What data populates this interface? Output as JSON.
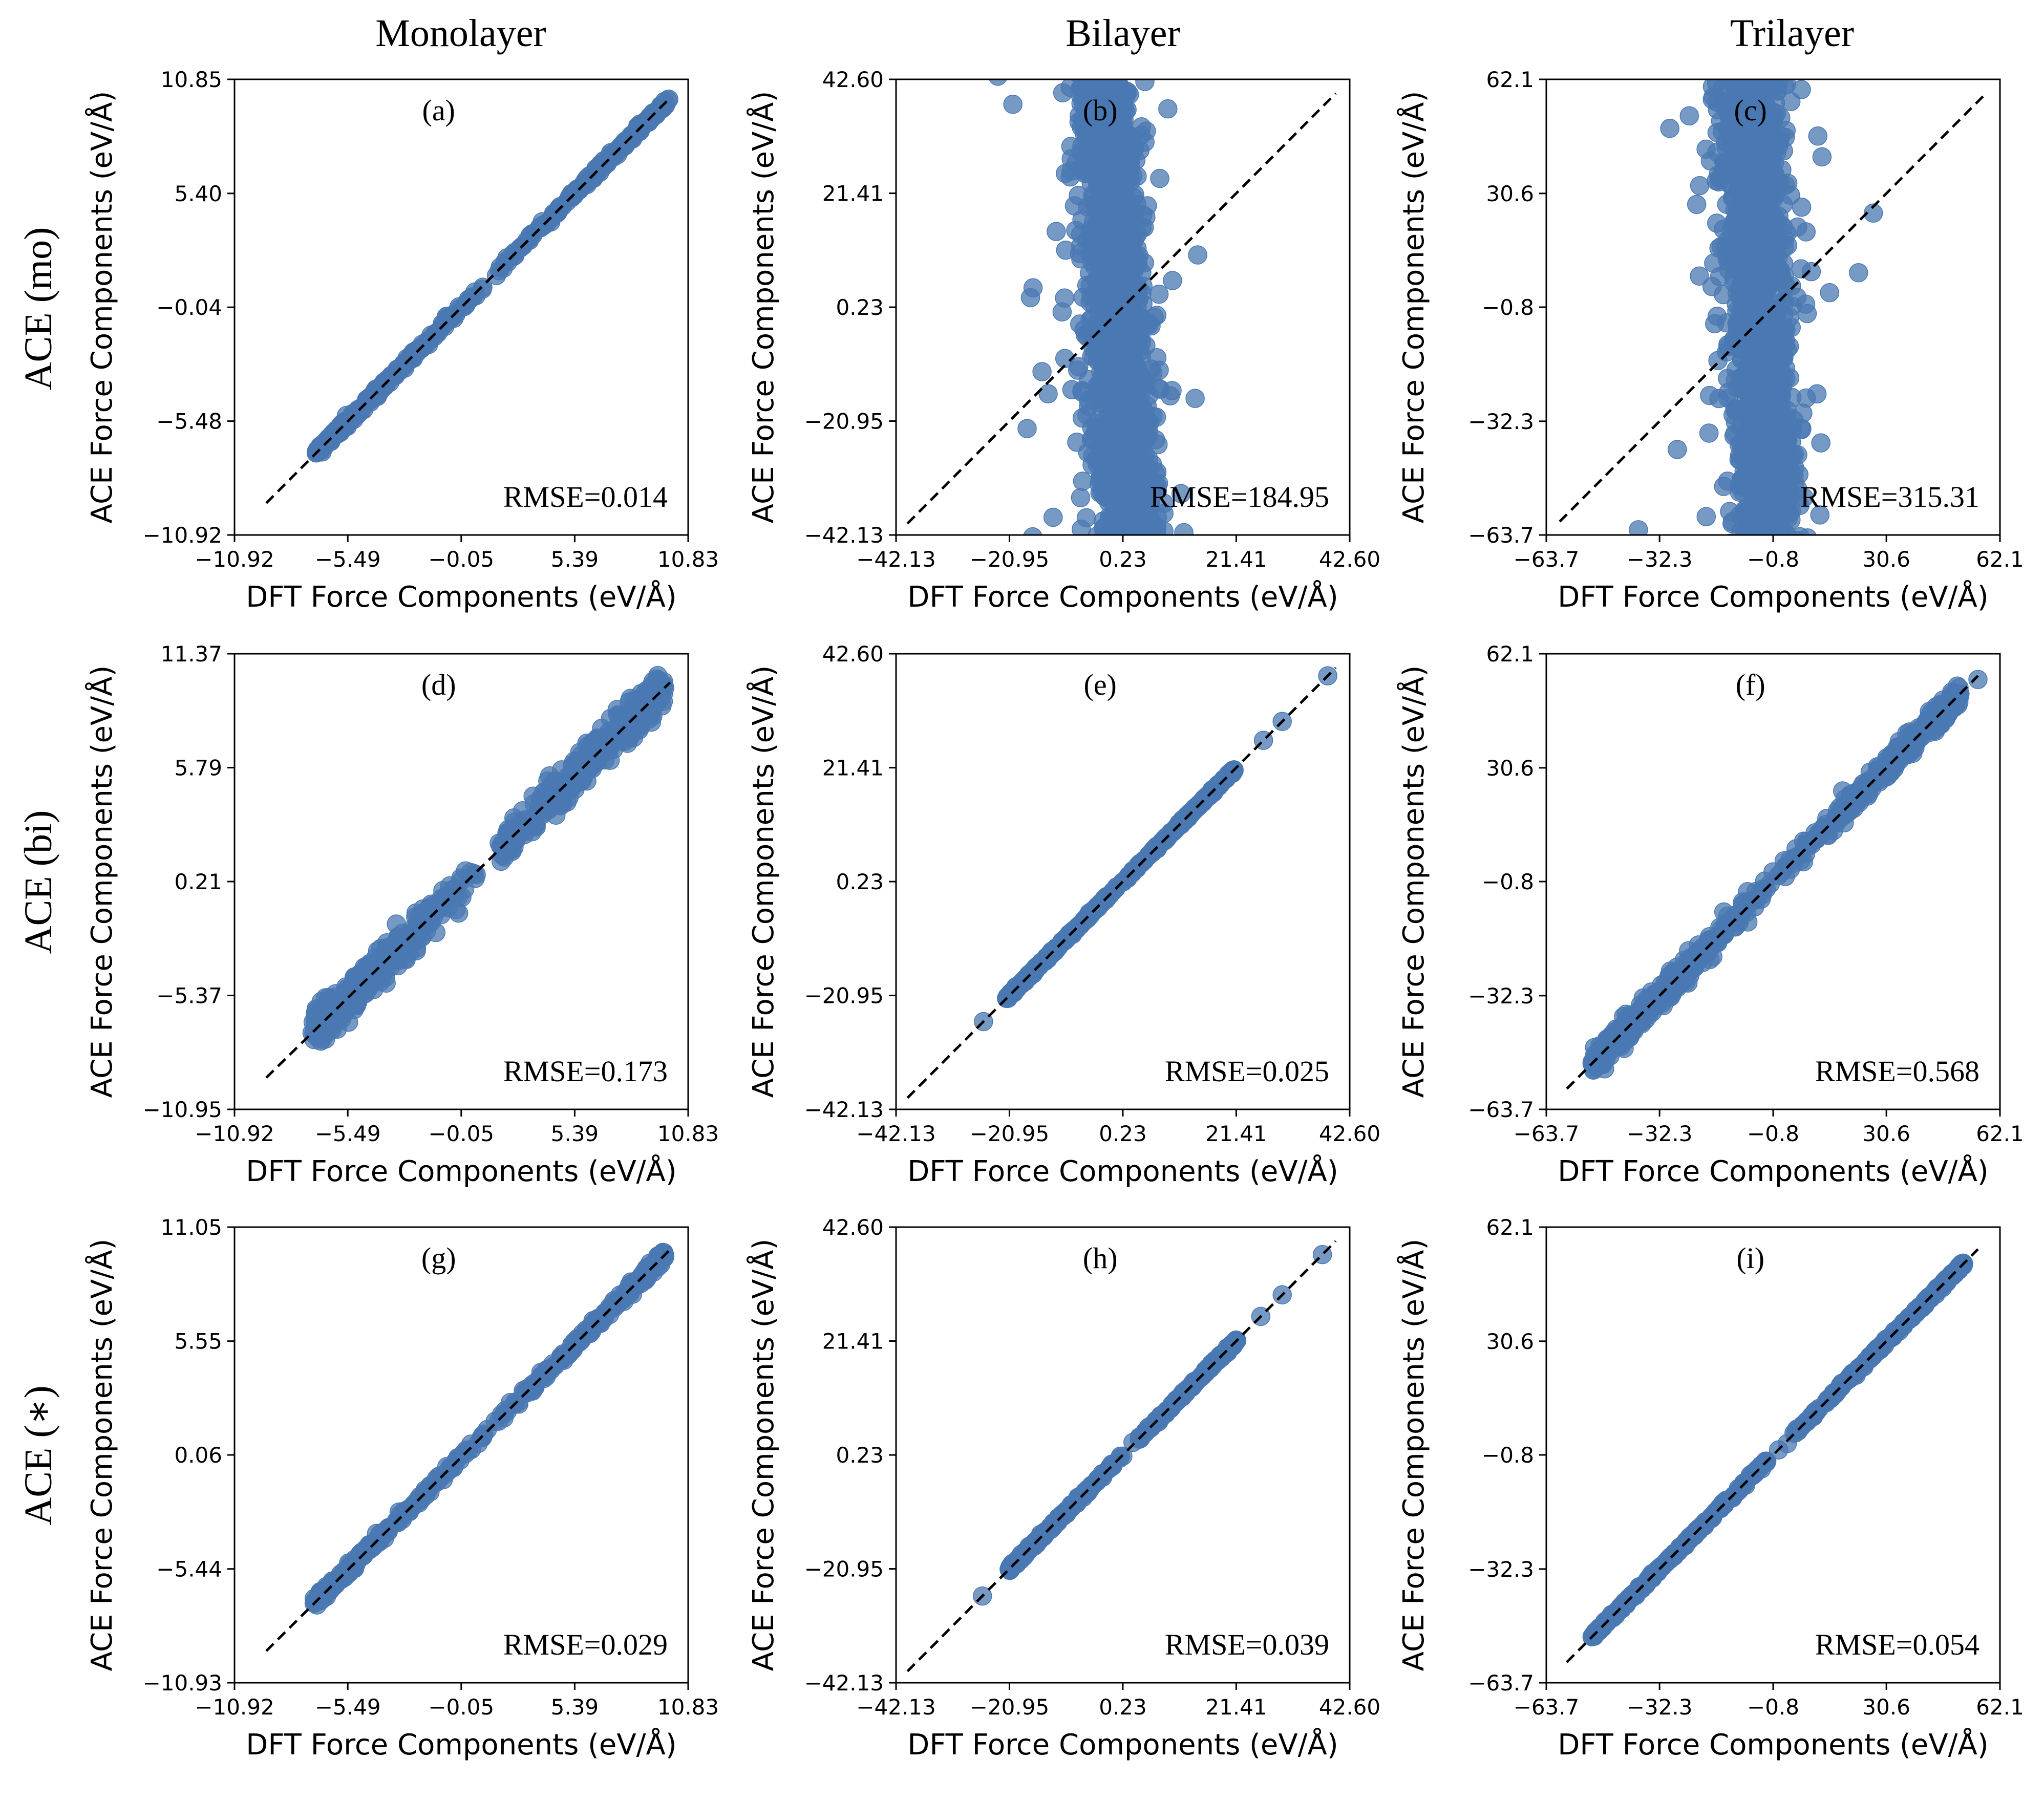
{
  "figure": {
    "column_titles": [
      "Monolayer",
      "Bilayer",
      "Trilayer"
    ],
    "row_titles": [
      "ACE (mo)",
      "ACE (bi)",
      "ACE (∗)"
    ],
    "colors": {
      "points": "#4a78b2",
      "diagonal": "#000000",
      "axes": "#000000"
    }
  },
  "chart_data": [
    {
      "type": "scatter",
      "label": "(a)",
      "row": 0,
      "col": 0,
      "xlabel": "DFT Force Components (eV/Å)",
      "ylabel": "ACE Force Components (eV/Å)",
      "xticks": [
        "−10.92",
        "−5.49",
        "−0.05",
        "5.39",
        "10.83"
      ],
      "yticks": [
        "−10.92",
        "−5.48",
        "−0.04",
        "5.40",
        "10.85"
      ],
      "xlim": [
        -10.92,
        10.83
      ],
      "ylim": [
        -10.92,
        10.85
      ],
      "rmse_text": "RMSE=0.014",
      "pattern": "tight",
      "slope": 1.0,
      "spread": 0.09,
      "x_range": [
        -7.0,
        9.9
      ],
      "n_points": 420
    },
    {
      "type": "scatter",
      "label": "(b)",
      "row": 0,
      "col": 1,
      "xlabel": "DFT Force Components (eV/Å)",
      "ylabel": "ACE Force Components (eV/Å)",
      "xticks": [
        "−42.13",
        "−20.95",
        "0.23",
        "21.41",
        "42.60"
      ],
      "yticks": [
        "−42.13",
        "−20.95",
        "0.23",
        "21.41",
        "42.60"
      ],
      "xlim": [
        -42.13,
        42.6
      ],
      "ylim": [
        -42.13,
        42.6
      ],
      "rmse_text": "RMSE=184.95",
      "pattern": "vertical",
      "slope": -0.06,
      "center": -1.0,
      "spread": 2.8,
      "y_range": [
        -44,
        44
      ],
      "n_points": 1400,
      "diag_range": [
        -40,
        40
      ]
    },
    {
      "type": "scatter",
      "label": "(c)",
      "row": 0,
      "col": 2,
      "xlabel": "DFT Force Components (eV/Å)",
      "ylabel": "ACE Force Components (eV/Å)",
      "xticks": [
        "−63.7",
        "−32.3",
        "−0.8",
        "30.6",
        "62.1"
      ],
      "yticks": [
        "−63.7",
        "−32.3",
        "−0.8",
        "30.6",
        "62.1"
      ],
      "xlim": [
        -63.7,
        62.1
      ],
      "ylim": [
        -63.7,
        62.1
      ],
      "rmse_text": "RMSE=315.31",
      "pattern": "vertical",
      "slope": -0.05,
      "center": -5.0,
      "spread": 4.0,
      "y_range": [
        -66,
        64
      ],
      "n_points": 1500,
      "diag_range": [
        -60,
        58
      ]
    },
    {
      "type": "scatter",
      "label": "(d)",
      "row": 1,
      "col": 0,
      "xlabel": "DFT Force Components (eV/Å)",
      "ylabel": "ACE Force Components (eV/Å)",
      "xticks": [
        "−10.92",
        "−5.49",
        "−0.05",
        "5.39",
        "10.83"
      ],
      "yticks": [
        "−10.95",
        "−5.37",
        "0.21",
        "5.79",
        "11.37"
      ],
      "xlim": [
        -10.92,
        10.83
      ],
      "ylim": [
        -10.95,
        11.37
      ],
      "rmse_text": "RMSE=0.173",
      "pattern": "tight",
      "slope": 1.0,
      "spread": 0.45,
      "x_range": [
        -7.2,
        9.7
      ],
      "n_points": 650
    },
    {
      "type": "scatter",
      "label": "(e)",
      "row": 1,
      "col": 1,
      "xlabel": "DFT Force Components (eV/Å)",
      "ylabel": "ACE Force Components (eV/Å)",
      "xticks": [
        "−42.13",
        "−20.95",
        "0.23",
        "21.41",
        "42.60"
      ],
      "yticks": [
        "−42.13",
        "−20.95",
        "0.23",
        "21.41",
        "42.60"
      ],
      "xlim": [
        -42.13,
        42.6
      ],
      "ylim": [
        -42.13,
        42.6
      ],
      "rmse_text": "RMSE=0.025",
      "pattern": "tight",
      "slope": 1.0,
      "spread": 0.15,
      "x_range": [
        -21.5,
        21.0
      ],
      "n_points": 420,
      "extra_points": [
        [
          -25.8,
          -25.8
        ],
        [
          26.5,
          26.5
        ],
        [
          30.0,
          30.0
        ],
        [
          38.5,
          38.5
        ]
      ],
      "diag_range": [
        -40,
        40
      ]
    },
    {
      "type": "scatter",
      "label": "(f)",
      "row": 1,
      "col": 2,
      "xlabel": "DFT Force Components (eV/Å)",
      "ylabel": "ACE Force Components (eV/Å)",
      "xticks": [
        "−63.7",
        "−32.3",
        "−0.8",
        "30.6",
        "62.1"
      ],
      "yticks": [
        "−63.7",
        "−32.3",
        "−0.8",
        "30.6",
        "62.1"
      ],
      "xlim": [
        -63.7,
        62.1
      ],
      "ylim": [
        -63.7,
        62.1
      ],
      "rmse_text": "RMSE=0.568",
      "pattern": "tight",
      "slope": 1.0,
      "spread": 1.6,
      "x_range": [
        -51,
        51
      ],
      "n_points": 700,
      "extra_points": [
        [
          56,
          55
        ]
      ],
      "diag_range": [
        -58,
        56
      ]
    },
    {
      "type": "scatter",
      "label": "(g)",
      "row": 2,
      "col": 0,
      "xlabel": "DFT Force Components (eV/Å)",
      "ylabel": "ACE Force Components (eV/Å)",
      "xticks": [
        "−10.92",
        "−5.49",
        "−0.05",
        "5.39",
        "10.83"
      ],
      "yticks": [
        "−10.93",
        "−5.44",
        "0.06",
        "5.55",
        "11.05"
      ],
      "xlim": [
        -10.92,
        10.83
      ],
      "ylim": [
        -10.93,
        11.05
      ],
      "rmse_text": "RMSE=0.029",
      "pattern": "tight",
      "slope": 1.0,
      "spread": 0.12,
      "x_range": [
        -7.1,
        9.7
      ],
      "n_points": 420
    },
    {
      "type": "scatter",
      "label": "(h)",
      "row": 2,
      "col": 1,
      "xlabel": "DFT Force Components (eV/Å)",
      "ylabel": "ACE Force Components (eV/Å)",
      "xticks": [
        "−42.13",
        "−20.95",
        "0.23",
        "21.41",
        "42.60"
      ],
      "yticks": [
        "−42.13",
        "−20.95",
        "0.23",
        "21.41",
        "42.60"
      ],
      "xlim": [
        -42.13,
        42.6
      ],
      "ylim": [
        -42.13,
        42.6
      ],
      "rmse_text": "RMSE=0.039",
      "pattern": "tight",
      "slope": 1.0,
      "spread": 0.2,
      "x_range": [
        -21.0,
        21.5
      ],
      "n_points": 420,
      "extra_points": [
        [
          -26,
          -26
        ],
        [
          26,
          26
        ],
        [
          30,
          30
        ],
        [
          37.5,
          37.5
        ]
      ],
      "diag_range": [
        -40,
        40
      ]
    },
    {
      "type": "scatter",
      "label": "(i)",
      "row": 2,
      "col": 2,
      "xlabel": "DFT Force Components (eV/Å)",
      "ylabel": "ACE Force Components (eV/Å)",
      "xticks": [
        "−63.7",
        "−32.3",
        "−0.8",
        "30.6",
        "62.1"
      ],
      "yticks": [
        "−63.7",
        "−32.3",
        "−0.8",
        "30.6",
        "62.1"
      ],
      "xlim": [
        -63.7,
        62.1
      ],
      "ylim": [
        -63.7,
        62.1
      ],
      "rmse_text": "RMSE=0.054",
      "pattern": "tight",
      "slope": 1.0,
      "spread": 0.3,
      "x_range": [
        -51,
        52
      ],
      "n_points": 520,
      "diag_range": [
        -58,
        56
      ]
    }
  ]
}
